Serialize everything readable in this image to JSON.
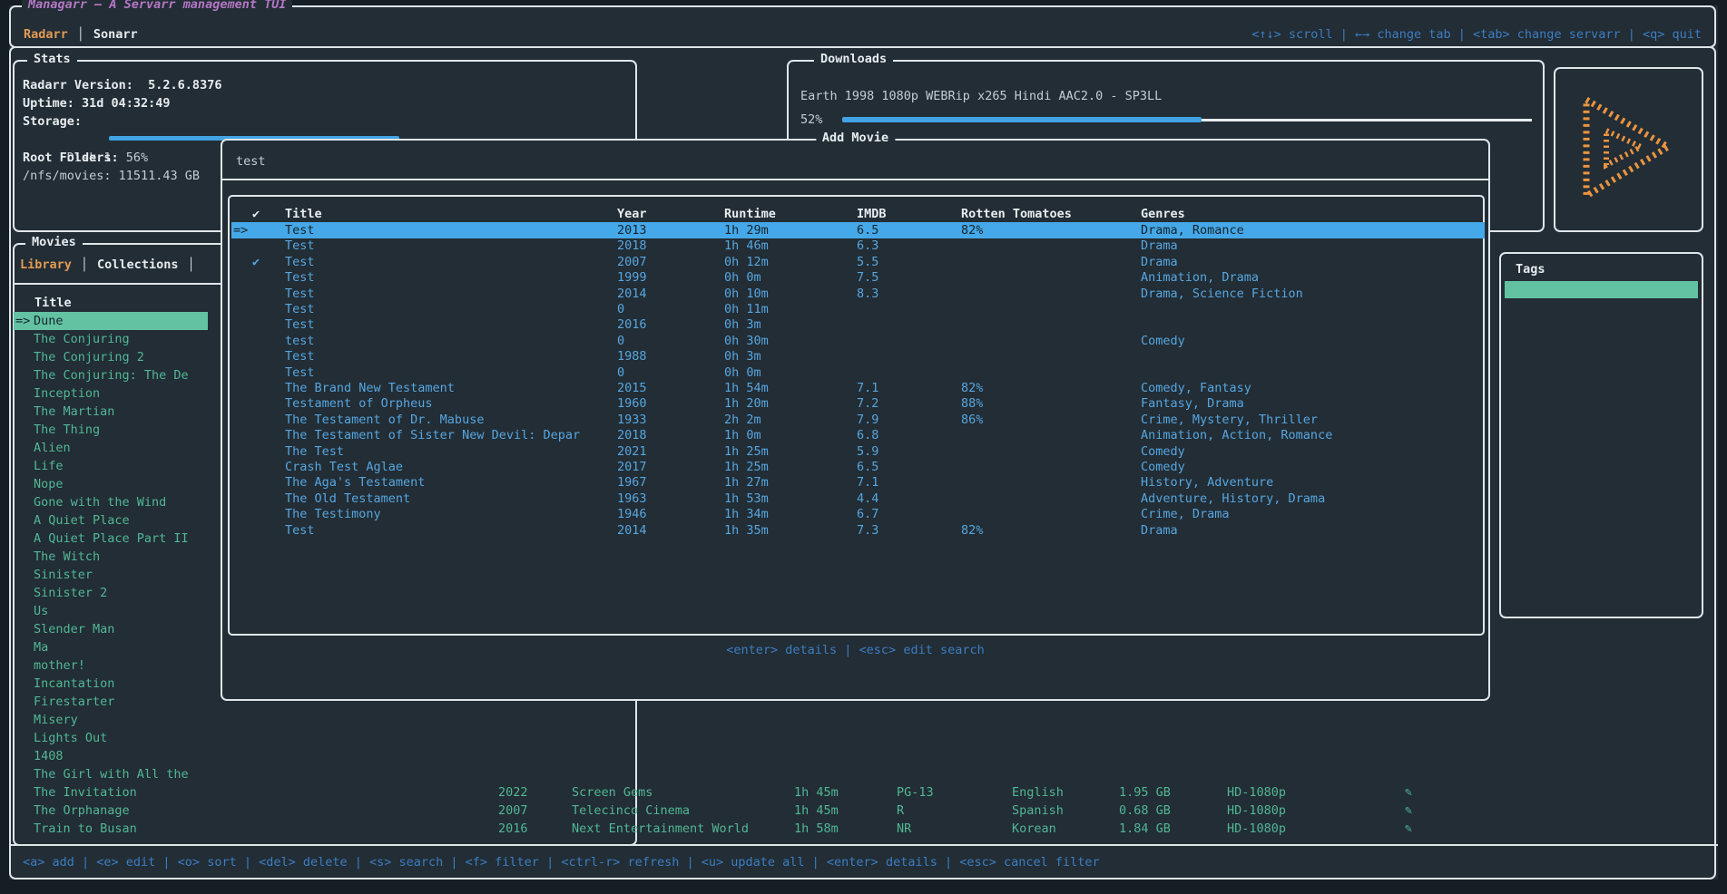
{
  "colors": {
    "background": "#222d35",
    "border": "#dfe6ea",
    "accent_blue": "#57a6e0",
    "key_hint_blue": "#3d7dc2",
    "selection_blue": "#45a8e8",
    "teal": "#52b795",
    "selection_green": "#62c2a2",
    "orange": "#e29a54",
    "purple": "#b577c5",
    "progress_blue": "#42a4e4"
  },
  "header": {
    "title": "Managarr — A Servarr management TUI",
    "tabs": [
      {
        "label": "Radarr",
        "active": true
      },
      {
        "label": "Sonarr",
        "active": false
      }
    ],
    "keybar": "<↑↓> scroll | ←→ change tab | <tab> change servarr | <q> quit"
  },
  "stats": {
    "panel_title": "Stats",
    "version_line": "Radarr Version:  5.2.6.8376",
    "uptime_line": "Uptime: 31d 04:32:49",
    "storage_label": "Storage:",
    "disk_line": "Disk 1: 56%",
    "disk_percent": 56,
    "root_folders_label": "Root Folders:",
    "root_folder_line": "/nfs/movies: 11511.43 GB"
  },
  "downloads": {
    "panel_title": "Downloads",
    "item_title": "Earth 1998 1080p WEBRip x265 Hindi AAC2.0 - SP3LL",
    "percent_label": "52%",
    "percent": 52
  },
  "logo": {
    "icon": "managarr-play-logo",
    "color": "#ec9440"
  },
  "movies_panel": {
    "panel_title": "Movies",
    "tabs": [
      {
        "label": "Library",
        "active": true
      },
      {
        "label": "Collections",
        "active": false
      }
    ],
    "column_header": "Title",
    "selected_index": 0,
    "selection_marker": "=>",
    "items": [
      "Dune",
      "The Conjuring",
      "The Conjuring 2",
      "The Conjuring: The De",
      "Inception",
      "The Martian",
      "The Thing",
      "Alien",
      "Life",
      "Nope",
      "Gone with the Wind",
      "A Quiet Place",
      "A Quiet Place Part II",
      "The Witch",
      "Sinister",
      "Sinister 2",
      "Us",
      "Slender Man",
      "Ma",
      "mother!",
      "Incantation",
      "Firestarter",
      "Misery",
      "Lights Out",
      "1408",
      "The Girl with All the",
      "The Invitation",
      "The Orphanage",
      "Train to Busan"
    ]
  },
  "add_movie": {
    "panel_title": "Add Movie",
    "search_value": "test",
    "columns": {
      "check": "✔",
      "title": "Title",
      "year": "Year",
      "runtime": "Runtime",
      "imdb": "IMDB",
      "rotten_tomatoes": "Rotten Tomatoes",
      "genres": "Genres"
    },
    "selection_marker": "=>",
    "rows": [
      {
        "selected": true,
        "check": "",
        "title": "Test",
        "year": "2013",
        "runtime": "1h 29m",
        "imdb": "6.5",
        "rt": "82%",
        "genres": "Drama, Romance"
      },
      {
        "selected": false,
        "check": "",
        "title": "Test",
        "year": "2018",
        "runtime": "1h 46m",
        "imdb": "6.3",
        "rt": "",
        "genres": "Drama"
      },
      {
        "selected": false,
        "check": "✔",
        "title": "Test",
        "year": "2007",
        "runtime": "0h 12m",
        "imdb": "5.5",
        "rt": "",
        "genres": "Drama"
      },
      {
        "selected": false,
        "check": "",
        "title": "Test",
        "year": "1999",
        "runtime": "0h 0m",
        "imdb": "7.5",
        "rt": "",
        "genres": "Animation, Drama"
      },
      {
        "selected": false,
        "check": "",
        "title": "Test",
        "year": "2014",
        "runtime": "0h 10m",
        "imdb": "8.3",
        "rt": "",
        "genres": "Drama, Science Fiction"
      },
      {
        "selected": false,
        "check": "",
        "title": "Test",
        "year": "0",
        "runtime": "0h 11m",
        "imdb": "",
        "rt": "",
        "genres": ""
      },
      {
        "selected": false,
        "check": "",
        "title": "Test",
        "year": "2016",
        "runtime": "0h 3m",
        "imdb": "",
        "rt": "",
        "genres": ""
      },
      {
        "selected": false,
        "check": "",
        "title": "test",
        "year": "0",
        "runtime": "0h 30m",
        "imdb": "",
        "rt": "",
        "genres": "Comedy"
      },
      {
        "selected": false,
        "check": "",
        "title": "Test",
        "year": "1988",
        "runtime": "0h 3m",
        "imdb": "",
        "rt": "",
        "genres": ""
      },
      {
        "selected": false,
        "check": "",
        "title": "Test",
        "year": "0",
        "runtime": "0h 0m",
        "imdb": "",
        "rt": "",
        "genres": ""
      },
      {
        "selected": false,
        "check": "",
        "title": "The Brand New Testament",
        "year": "2015",
        "runtime": "1h 54m",
        "imdb": "7.1",
        "rt": "82%",
        "genres": "Comedy, Fantasy"
      },
      {
        "selected": false,
        "check": "",
        "title": "Testament of Orpheus",
        "year": "1960",
        "runtime": "1h 20m",
        "imdb": "7.2",
        "rt": "88%",
        "genres": "Fantasy, Drama"
      },
      {
        "selected": false,
        "check": "",
        "title": "The Testament of Dr. Mabuse",
        "year": "1933",
        "runtime": "2h 2m",
        "imdb": "7.9",
        "rt": "86%",
        "genres": "Crime, Mystery, Thriller"
      },
      {
        "selected": false,
        "check": "",
        "title": "The Testament of Sister New Devil: Depar",
        "year": "2018",
        "runtime": "1h 0m",
        "imdb": "6.8",
        "rt": "",
        "genres": "Animation, Action, Romance"
      },
      {
        "selected": false,
        "check": "",
        "title": "The Test",
        "year": "2021",
        "runtime": "1h 25m",
        "imdb": "5.9",
        "rt": "",
        "genres": "Comedy"
      },
      {
        "selected": false,
        "check": "",
        "title": "Crash Test Aglae",
        "year": "2017",
        "runtime": "1h 25m",
        "imdb": "6.5",
        "rt": "",
        "genres": "Comedy"
      },
      {
        "selected": false,
        "check": "",
        "title": "The Aga's Testament",
        "year": "1967",
        "runtime": "1h 27m",
        "imdb": "7.1",
        "rt": "",
        "genres": "History, Adventure"
      },
      {
        "selected": false,
        "check": "",
        "title": "The Old Testament",
        "year": "1963",
        "runtime": "1h 53m",
        "imdb": "4.4",
        "rt": "",
        "genres": "Adventure, History, Drama"
      },
      {
        "selected": false,
        "check": "",
        "title": "The Testimony",
        "year": "1946",
        "runtime": "1h 34m",
        "imdb": "6.7",
        "rt": "",
        "genres": "Crime, Drama"
      },
      {
        "selected": false,
        "check": "",
        "title": "Test",
        "year": "2014",
        "runtime": "1h 35m",
        "imdb": "7.3",
        "rt": "82%",
        "genres": "Drama"
      }
    ],
    "help": "<enter> details | <esc> edit search"
  },
  "tags_panel": {
    "panel_title": "Tags"
  },
  "background_rows": {
    "edit_icon": "✎",
    "rows": [
      {
        "year": "2022",
        "studio": "Screen Gems",
        "runtime": "1h 45m",
        "rating": "PG-13",
        "language": "English",
        "size": "1.95 GB",
        "quality": "HD-1080p"
      },
      {
        "year": "2007",
        "studio": "Telecinco Cinema",
        "runtime": "1h 45m",
        "rating": "R",
        "language": "Spanish",
        "size": "0.68 GB",
        "quality": "HD-1080p"
      },
      {
        "year": "2016",
        "studio": "Next Entertainment World",
        "runtime": "1h 58m",
        "rating": "NR",
        "language": "Korean",
        "size": "1.84 GB",
        "quality": "HD-1080p"
      }
    ]
  },
  "bottom_keybar": "<a> add | <e> edit | <o> sort | <del> delete | <s> search | <f> filter | <ctrl-r> refresh | <u> update all | <enter> details | <esc> cancel filter"
}
